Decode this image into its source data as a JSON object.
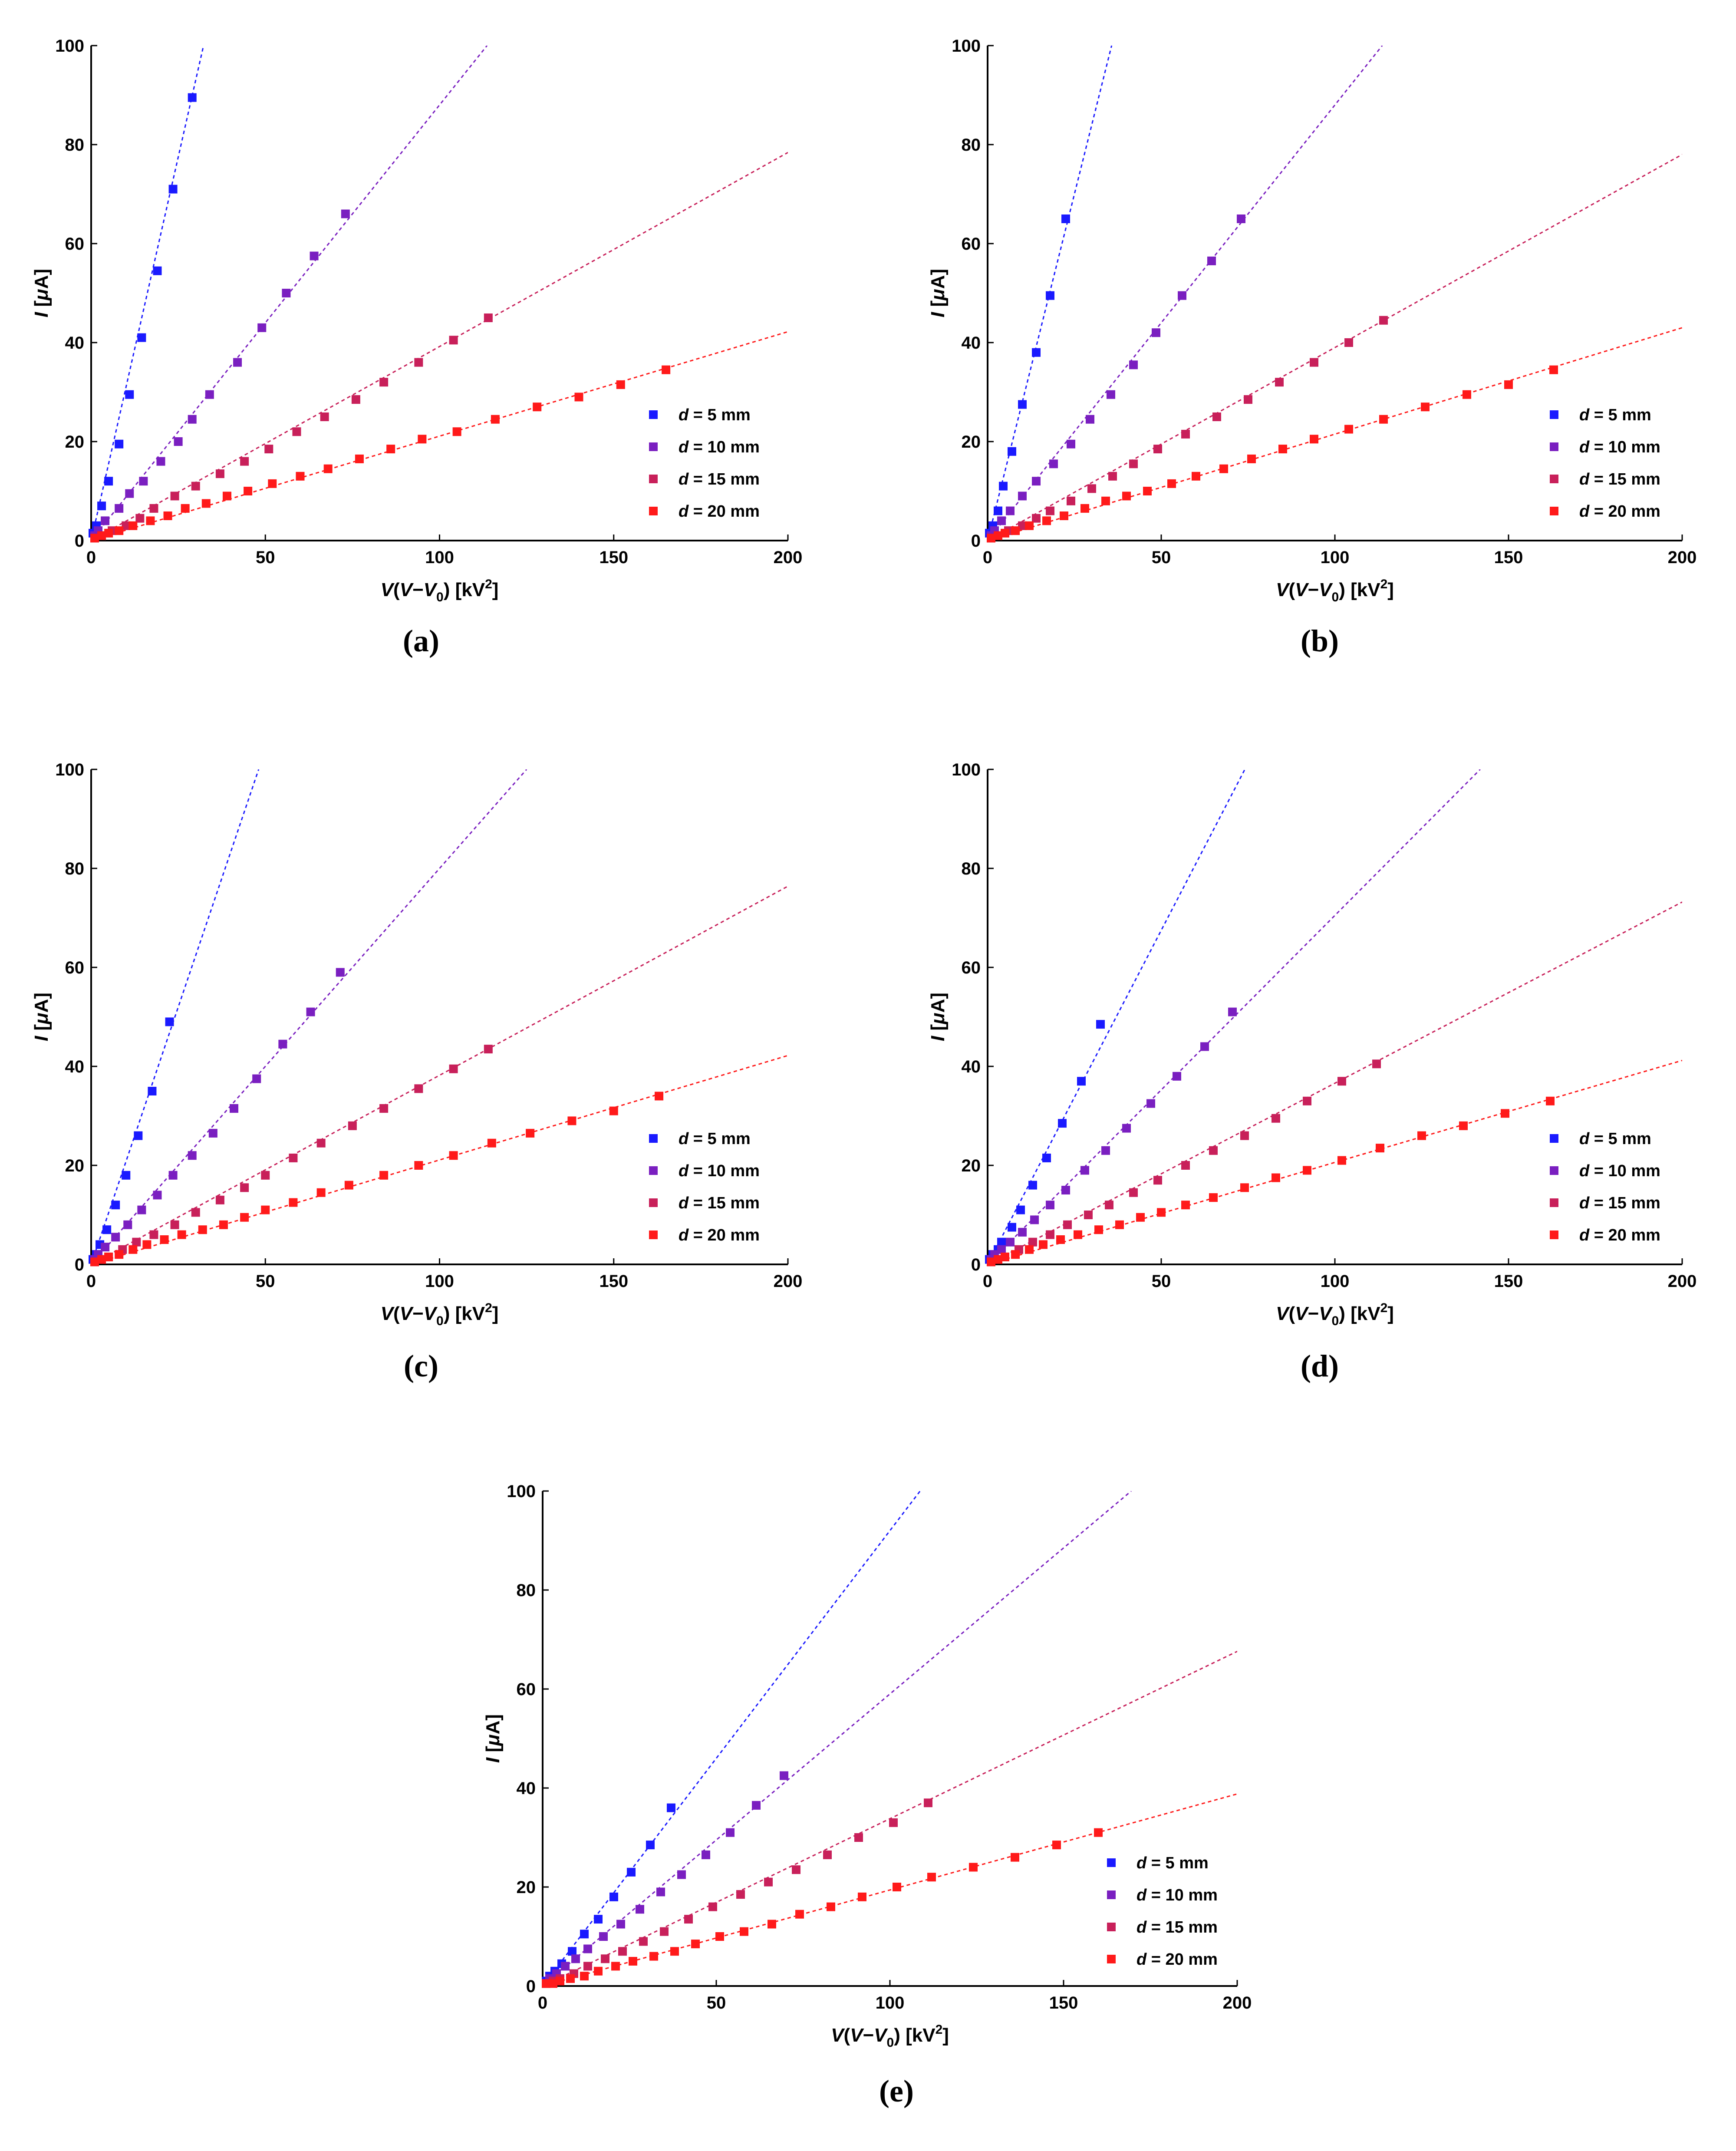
{
  "chart_data": [
    {
      "type": "scatter",
      "panel_label": "(a)",
      "xlabel_parts": [
        "V",
        "(",
        "V",
        "−",
        "V",
        "0",
        ") [kV",
        "2",
        "]"
      ],
      "ylabel_parts": [
        "I",
        " [",
        "μ",
        "A]"
      ],
      "xlim": [
        0,
        200
      ],
      "ylim": [
        0,
        100
      ],
      "xticks": [
        "0",
        "50",
        "100",
        "150",
        "200"
      ],
      "yticks": [
        "0",
        "20",
        "40",
        "60",
        "80",
        "100"
      ],
      "legend_position": "right-middle",
      "series": [
        {
          "d": "d",
          "name": " = 5 mm",
          "color": "#1a1aff",
          "slope": 3.1,
          "x": [
            0.5,
            1.5,
            3,
            5,
            8,
            11,
            14.5,
            19,
            23.5,
            29
          ],
          "y": [
            1.5,
            3,
            7,
            12,
            19.5,
            29.5,
            41,
            54.5,
            71,
            89.5
          ]
        },
        {
          "d": "d",
          "name": " = 10 mm",
          "color": "#7a1fc0",
          "slope": 0.88,
          "x": [
            1,
            2,
            4,
            8,
            11,
            15,
            20,
            25,
            29,
            34,
            42,
            49,
            56,
            64,
            73
          ],
          "y": [
            1,
            2,
            4,
            6.5,
            9.5,
            12,
            16,
            20,
            24.5,
            29.5,
            36,
            43,
            50,
            57.5,
            66
          ]
        },
        {
          "d": "d",
          "name": " = 15 mm",
          "color": "#c8205a",
          "slope": 0.392,
          "x": [
            1,
            3,
            6,
            10,
            14,
            18,
            24,
            30,
            37,
            44,
            51,
            59,
            67,
            76,
            84,
            94,
            104,
            114
          ],
          "y": [
            0.5,
            1,
            2,
            3,
            4.5,
            6.5,
            9,
            11,
            13.5,
            16,
            18.5,
            22,
            25,
            28.5,
            32,
            36,
            40.5,
            45
          ]
        },
        {
          "d": "d",
          "name": " = 20 mm",
          "color": "#ff1a1a",
          "slope": 0.211,
          "x": [
            1,
            3,
            5,
            8,
            12,
            17,
            22,
            27,
            33,
            39,
            45,
            52,
            60,
            68,
            77,
            86,
            95,
            105,
            116,
            128,
            140,
            152,
            165
          ],
          "y": [
            0.5,
            1,
            1.5,
            2,
            3,
            4,
            5,
            6.5,
            7.5,
            9,
            10,
            11.5,
            13,
            14.5,
            16.5,
            18.5,
            20.5,
            22,
            24.5,
            27,
            29,
            31.5,
            34.5
          ]
        }
      ],
      "legend": [
        "d = 5 mm",
        "d = 10 mm",
        "d = 15 mm",
        "d = 20 mm"
      ]
    },
    {
      "type": "scatter",
      "panel_label": "(b)",
      "xlabel_parts": [
        "V",
        "(",
        "V",
        "−",
        "V",
        "0",
        ") [kV",
        "2",
        "]"
      ],
      "ylabel_parts": [
        "I",
        " [",
        "μ",
        "A]"
      ],
      "xlim": [
        0,
        200
      ],
      "ylim": [
        0,
        100
      ],
      "xticks": [
        "0",
        "50",
        "100",
        "150",
        "200"
      ],
      "yticks": [
        "0",
        "20",
        "40",
        "60",
        "80",
        "100"
      ],
      "legend_position": "right-middle",
      "series": [
        {
          "d": "d",
          "name": " = 5 mm",
          "color": "#1a1aff",
          "slope": 2.8,
          "x": [
            0.5,
            1.5,
            3,
            4.5,
            7,
            10,
            14,
            18,
            22.5
          ],
          "y": [
            1.5,
            3,
            6,
            11,
            18,
            27.5,
            38,
            49.5,
            65
          ]
        },
        {
          "d": "d",
          "name": " = 10 mm",
          "color": "#7a1fc0",
          "slope": 0.88,
          "x": [
            1,
            2,
            4,
            6.5,
            10,
            14,
            19,
            24,
            29.5,
            35.5,
            42,
            48.5,
            56,
            64.5,
            73
          ],
          "y": [
            1,
            2,
            4,
            6,
            9,
            12,
            15.5,
            19.5,
            24.5,
            29.5,
            35.5,
            42,
            49.5,
            56.5,
            65
          ]
        },
        {
          "d": "d",
          "name": " = 15 mm",
          "color": "#c8205a",
          "slope": 0.39,
          "x": [
            1,
            3,
            6,
            10,
            14,
            18,
            24,
            30,
            36,
            42,
            49,
            57,
            66,
            75,
            84,
            94,
            104,
            114
          ],
          "y": [
            0.5,
            1,
            2,
            3,
            4.5,
            6,
            8,
            10.5,
            13,
            15.5,
            18.5,
            21.5,
            25,
            28.5,
            32,
            36,
            40,
            44.5
          ]
        },
        {
          "d": "d",
          "name": " = 20 mm",
          "color": "#ff1a1a",
          "slope": 0.215,
          "x": [
            1,
            3,
            5,
            8,
            12,
            17,
            22,
            28,
            34,
            40,
            46,
            53,
            60,
            68,
            76,
            85,
            94,
            104,
            114,
            126,
            138,
            150,
            163
          ],
          "y": [
            0.5,
            1,
            1.5,
            2,
            3,
            4,
            5,
            6.5,
            8,
            9,
            10,
            11.5,
            13,
            14.5,
            16.5,
            18.5,
            20.5,
            22.5,
            24.5,
            27,
            29.5,
            31.5,
            34.5
          ]
        }
      ],
      "legend": [
        "d = 5 mm",
        "d = 10 mm",
        "d = 15 mm",
        "d = 20 mm"
      ]
    },
    {
      "type": "scatter",
      "panel_label": "(c)",
      "xlabel_parts": [
        "V",
        "(",
        "V",
        "−",
        "V",
        "0",
        ") [kV",
        "2",
        "]"
      ],
      "ylabel_parts": [
        "I",
        " [",
        "μ",
        "A]"
      ],
      "xlim": [
        0,
        200
      ],
      "ylim": [
        0,
        100
      ],
      "xticks": [
        "0",
        "50",
        "100",
        "150",
        "200"
      ],
      "yticks": [
        "0",
        "20",
        "40",
        "60",
        "80",
        "100"
      ],
      "legend_position": "right-middle",
      "series": [
        {
          "d": "d",
          "name": " = 5 mm",
          "color": "#1a1aff",
          "slope": 2.08,
          "x": [
            0.5,
            1.5,
            2.5,
            4.5,
            7,
            10,
            13.5,
            17.5,
            22.5
          ],
          "y": [
            1,
            2,
            4,
            7,
            12,
            18,
            26,
            35,
            49
          ]
        },
        {
          "d": "d",
          "name": " = 10 mm",
          "color": "#7a1fc0",
          "slope": 0.8,
          "x": [
            1,
            2,
            4,
            7,
            10.5,
            14.5,
            19,
            23.5,
            29,
            35,
            41,
            47.5,
            55,
            63,
            71.5
          ],
          "y": [
            1,
            2,
            3.5,
            5.5,
            8,
            11,
            14,
            18,
            22,
            26.5,
            31.5,
            37.5,
            44.5,
            51,
            59
          ]
        },
        {
          "d": "d",
          "name": " = 15 mm",
          "color": "#c8205a",
          "slope": 0.382,
          "x": [
            1,
            3,
            5,
            9,
            13,
            18,
            24,
            30,
            37,
            44,
            50,
            58,
            66,
            75,
            84,
            94,
            104,
            114
          ],
          "y": [
            0.5,
            1,
            1.5,
            3,
            4.5,
            6,
            8,
            10.5,
            13,
            15.5,
            18,
            21.5,
            24.5,
            28,
            31.5,
            35.5,
            39.5,
            43.5
          ]
        },
        {
          "d": "d",
          "name": " = 20 mm",
          "color": "#ff1a1a",
          "slope": 0.211,
          "x": [
            1,
            3,
            5,
            8,
            12,
            16,
            21,
            26,
            32,
            38,
            44,
            50,
            58,
            66,
            74,
            84,
            94,
            104,
            115,
            126,
            138,
            150,
            163
          ],
          "y": [
            0.5,
            1,
            1.5,
            2,
            3,
            4,
            5,
            6,
            7,
            8,
            9.5,
            11,
            12.5,
            14.5,
            16,
            18,
            20,
            22,
            24.5,
            26.5,
            29,
            31,
            34
          ]
        }
      ],
      "legend": [
        "d = 5 mm",
        "d = 10 mm",
        "d = 15 mm",
        "d = 20 mm"
      ]
    },
    {
      "type": "scatter",
      "panel_label": "(d)",
      "xlabel_parts": [
        "V",
        "(",
        "V",
        "−",
        "V",
        "0",
        ") [kV",
        "2",
        "]"
      ],
      "ylabel_parts": [
        "I",
        " [",
        "μ",
        "A]"
      ],
      "xlim": [
        0,
        200
      ],
      "ylim": [
        0,
        100
      ],
      "xticks": [
        "0",
        "50",
        "100",
        "150",
        "200"
      ],
      "yticks": [
        "0",
        "20",
        "40",
        "60",
        "80",
        "100"
      ],
      "legend_position": "right-middle",
      "series": [
        {
          "d": "d",
          "name": " = 5 mm",
          "color": "#1a1aff",
          "slope": 1.35,
          "x": [
            0.5,
            1.5,
            3,
            4,
            7,
            9.5,
            13,
            17,
            21.5,
            27,
            32.5
          ],
          "y": [
            1,
            2,
            3,
            4.5,
            7.5,
            11,
            16,
            21.5,
            28.5,
            37,
            48.5
          ]
        },
        {
          "d": "d",
          "name": " = 10 mm",
          "color": "#7a1fc0",
          "slope": 0.705,
          "x": [
            1,
            2,
            4,
            6.5,
            10,
            13.5,
            18,
            22.5,
            28,
            34,
            40,
            47,
            54.5,
            62.5,
            70.5
          ],
          "y": [
            1,
            2,
            3,
            4.5,
            6.5,
            9,
            12,
            15,
            19,
            23,
            27.5,
            32.5,
            38,
            44,
            51
          ]
        },
        {
          "d": "d",
          "name": " = 15 mm",
          "color": "#c8205a",
          "slope": 0.366,
          "x": [
            1,
            3,
            5,
            9,
            13,
            18,
            23,
            29,
            35,
            42,
            49,
            57,
            65,
            74,
            83,
            92,
            102,
            112
          ],
          "y": [
            0.5,
            1,
            1.5,
            3,
            4.5,
            6,
            8,
            10,
            12,
            14.5,
            17,
            20,
            23,
            26,
            29.5,
            33,
            37,
            40.5
          ]
        },
        {
          "d": "d",
          "name": " = 20 mm",
          "color": "#ff1a1a",
          "slope": 0.206,
          "x": [
            1,
            3,
            5,
            8,
            12,
            16,
            21,
            26,
            32,
            38,
            44,
            50,
            57,
            65,
            74,
            83,
            92,
            102,
            113,
            125,
            137,
            149,
            162
          ],
          "y": [
            0.5,
            1,
            1.5,
            2,
            3,
            4,
            5,
            6,
            7,
            8,
            9.5,
            10.5,
            12,
            13.5,
            15.5,
            17.5,
            19,
            21,
            23.5,
            26,
            28,
            30.5,
            33
          ]
        }
      ],
      "legend": [
        "d = 5 mm",
        "d = 10 mm",
        "d = 15 mm",
        "d = 20 mm"
      ]
    },
    {
      "type": "scatter",
      "panel_label": "(e)",
      "xlabel_parts": [
        "V",
        "(",
        "V",
        "−",
        "V",
        "0",
        ") [kV",
        "2",
        "]"
      ],
      "ylabel_parts": [
        "I",
        " [",
        "μ",
        "A]"
      ],
      "xlim": [
        0,
        200
      ],
      "ylim": [
        0,
        100
      ],
      "xticks": [
        "0",
        "50",
        "100",
        "150",
        "200"
      ],
      "yticks": [
        "0",
        "20",
        "40",
        "60",
        "80",
        "100"
      ],
      "legend_position": "right-bottom",
      "series": [
        {
          "d": "d",
          "name": " = 5 mm",
          "color": "#1a1aff",
          "slope": 0.92,
          "x": [
            1,
            2,
            3.5,
            5.5,
            8.5,
            12,
            16,
            20.5,
            25.5,
            31,
            37
          ],
          "y": [
            1,
            2,
            3,
            4.5,
            7,
            10.5,
            13.5,
            18,
            23,
            28.5,
            36
          ]
        },
        {
          "d": "d",
          "name": " = 10 mm",
          "color": "#7a1fc0",
          "slope": 0.59,
          "x": [
            1,
            2,
            4,
            6.5,
            9.5,
            13,
            17.5,
            22.5,
            28,
            34,
            40,
            47,
            54,
            61.5,
            69.5
          ],
          "y": [
            0.5,
            1.5,
            2.5,
            4,
            5.5,
            7.5,
            10,
            12.5,
            15.5,
            19,
            22.5,
            26.5,
            31,
            36.5,
            42.5
          ]
        },
        {
          "d": "d",
          "name": " = 15 mm",
          "color": "#c8205a",
          "slope": 0.338,
          "x": [
            1,
            3,
            5,
            9,
            13,
            18,
            23,
            29,
            35,
            42,
            49,
            57,
            65,
            73,
            82,
            91,
            101,
            111
          ],
          "y": [
            0.5,
            1,
            1.5,
            2.5,
            4,
            5.5,
            7,
            9,
            11,
            13.5,
            16,
            18.5,
            21,
            23.5,
            26.5,
            30,
            33,
            37
          ]
        },
        {
          "d": "d",
          "name": " = 20 mm",
          "color": "#ff1a1a",
          "slope": 0.194,
          "x": [
            1,
            3,
            5,
            8,
            12,
            16,
            21,
            26,
            32,
            38,
            44,
            51,
            58,
            66,
            74,
            83,
            92,
            102,
            112,
            124,
            136,
            148,
            160
          ],
          "y": [
            0.5,
            0.5,
            1,
            1.5,
            2,
            3,
            4,
            5,
            6,
            7,
            8.5,
            10,
            11,
            12.5,
            14.5,
            16,
            18,
            20,
            22,
            24,
            26,
            28.5,
            31
          ]
        }
      ],
      "legend": [
        "d = 5 mm",
        "d = 10 mm",
        "d = 15 mm",
        "d = 20 mm"
      ]
    }
  ]
}
